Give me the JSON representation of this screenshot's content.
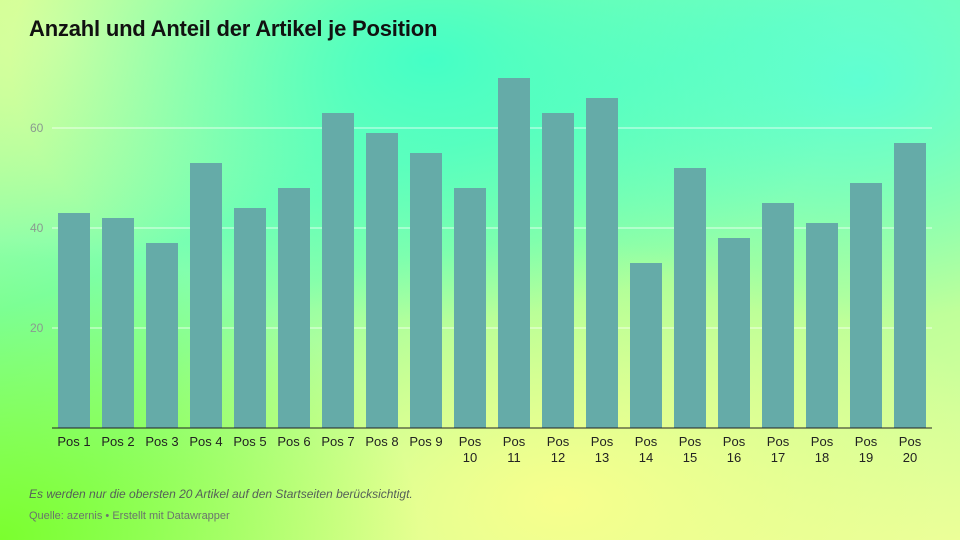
{
  "chart_data": {
    "type": "bar",
    "title": "Anzahl und Anteil der Artikel je Position",
    "categories": [
      [
        "Pos 1"
      ],
      [
        "Pos 2"
      ],
      [
        "Pos 3"
      ],
      [
        "Pos 4"
      ],
      [
        "Pos 5"
      ],
      [
        "Pos 6"
      ],
      [
        "Pos 7"
      ],
      [
        "Pos 8"
      ],
      [
        "Pos 9"
      ],
      [
        "Pos",
        "10"
      ],
      [
        "Pos",
        "11"
      ],
      [
        "Pos",
        "12"
      ],
      [
        "Pos",
        "13"
      ],
      [
        "Pos",
        "14"
      ],
      [
        "Pos",
        "15"
      ],
      [
        "Pos",
        "16"
      ],
      [
        "Pos",
        "17"
      ],
      [
        "Pos",
        "18"
      ],
      [
        "Pos",
        "19"
      ],
      [
        "Pos",
        "20"
      ]
    ],
    "values": [
      43,
      42,
      37,
      53,
      44,
      48,
      63,
      59,
      55,
      48,
      70,
      63,
      66,
      33,
      52,
      38,
      45,
      41,
      49,
      57
    ],
    "yticks": [
      20,
      40,
      60
    ],
    "ylim": [
      0,
      70
    ],
    "grid": true,
    "bar_color": "#65aba8",
    "grid_color": "#ffffff",
    "xlabel": "",
    "ylabel": ""
  },
  "footer": {
    "note": "Es werden nur die obersten 20 Artikel auf den Startseiten berücksichtigt.",
    "source": "Quelle: azernis • Erstellt mit Datawrapper"
  }
}
